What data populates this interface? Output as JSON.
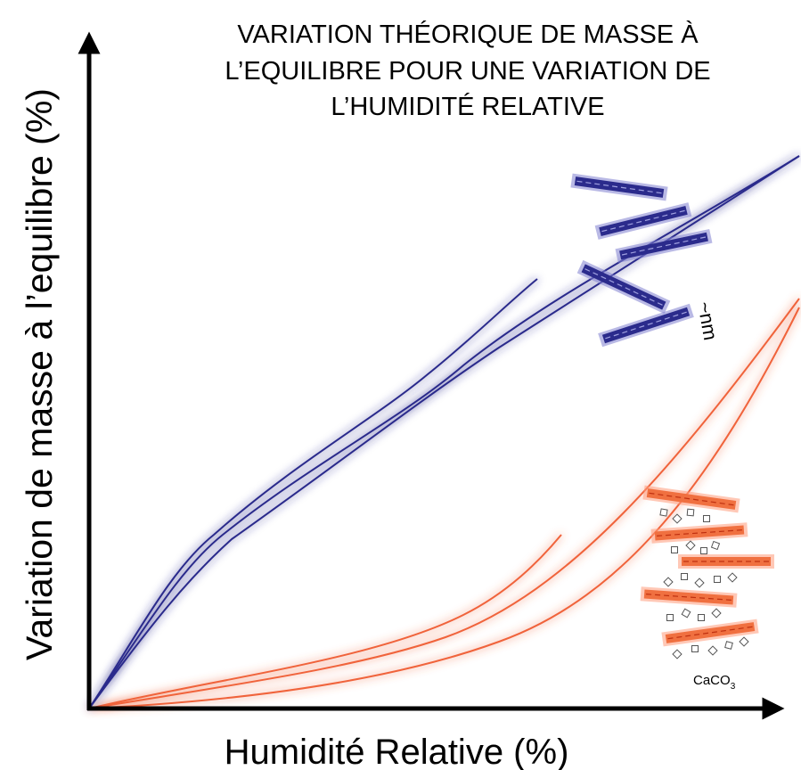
{
  "title": {
    "lines": [
      "VARIATION THÉORIQUE DE MASSE À",
      "L’EQUILIBRE POUR UNE VARIATION DE",
      "L’HUMIDITÉ RELATIVE"
    ]
  },
  "axes": {
    "y_label": "Variation de masse à l’equilibre (%)",
    "x_label": "Humidité Relative (%)"
  },
  "annotations": {
    "scale": "~nm",
    "mineral": {
      "base": "CaCO",
      "subscript": "3"
    }
  }
}
